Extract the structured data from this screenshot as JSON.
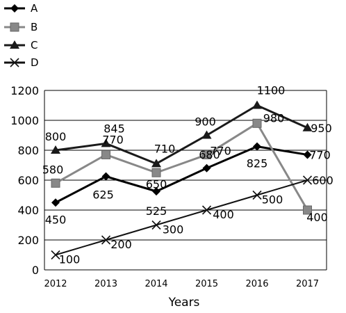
{
  "chart_data": {
    "type": "line",
    "title": "",
    "xlabel": "Years",
    "ylabel": "",
    "categories": [
      "2012",
      "2013",
      "2014",
      "2015",
      "2016",
      "2017"
    ],
    "ylim": [
      0,
      1200
    ],
    "yticks": [
      "0",
      "200",
      "400",
      "600",
      "800",
      "1000",
      "1200"
    ],
    "grid": "horizontal",
    "legend_position": "top-left",
    "series": [
      {
        "name": "A",
        "values": [
          450,
          625,
          525,
          680,
          825,
          770
        ],
        "color": "#000000",
        "marker": "diamond",
        "labels": [
          "450",
          "625",
          "525",
          "680",
          "825",
          "770"
        ]
      },
      {
        "name": "B",
        "values": [
          580,
          770,
          650,
          770,
          980,
          400
        ],
        "color": "#888888",
        "marker": "square",
        "labels": [
          "580",
          "770",
          "650",
          "770",
          "980",
          "400"
        ]
      },
      {
        "name": "C",
        "values": [
          800,
          845,
          710,
          900,
          1100,
          950
        ],
        "color": "#1a1a1a",
        "marker": "triangle",
        "labels": [
          "800",
          "845",
          "710",
          "900",
          "1100",
          "950"
        ]
      },
      {
        "name": "D",
        "values": [
          100,
          200,
          300,
          400,
          500,
          600
        ],
        "color": "#111111",
        "marker": "x",
        "labels": [
          "100",
          "200",
          "300",
          "400",
          "500",
          "600"
        ]
      }
    ]
  }
}
